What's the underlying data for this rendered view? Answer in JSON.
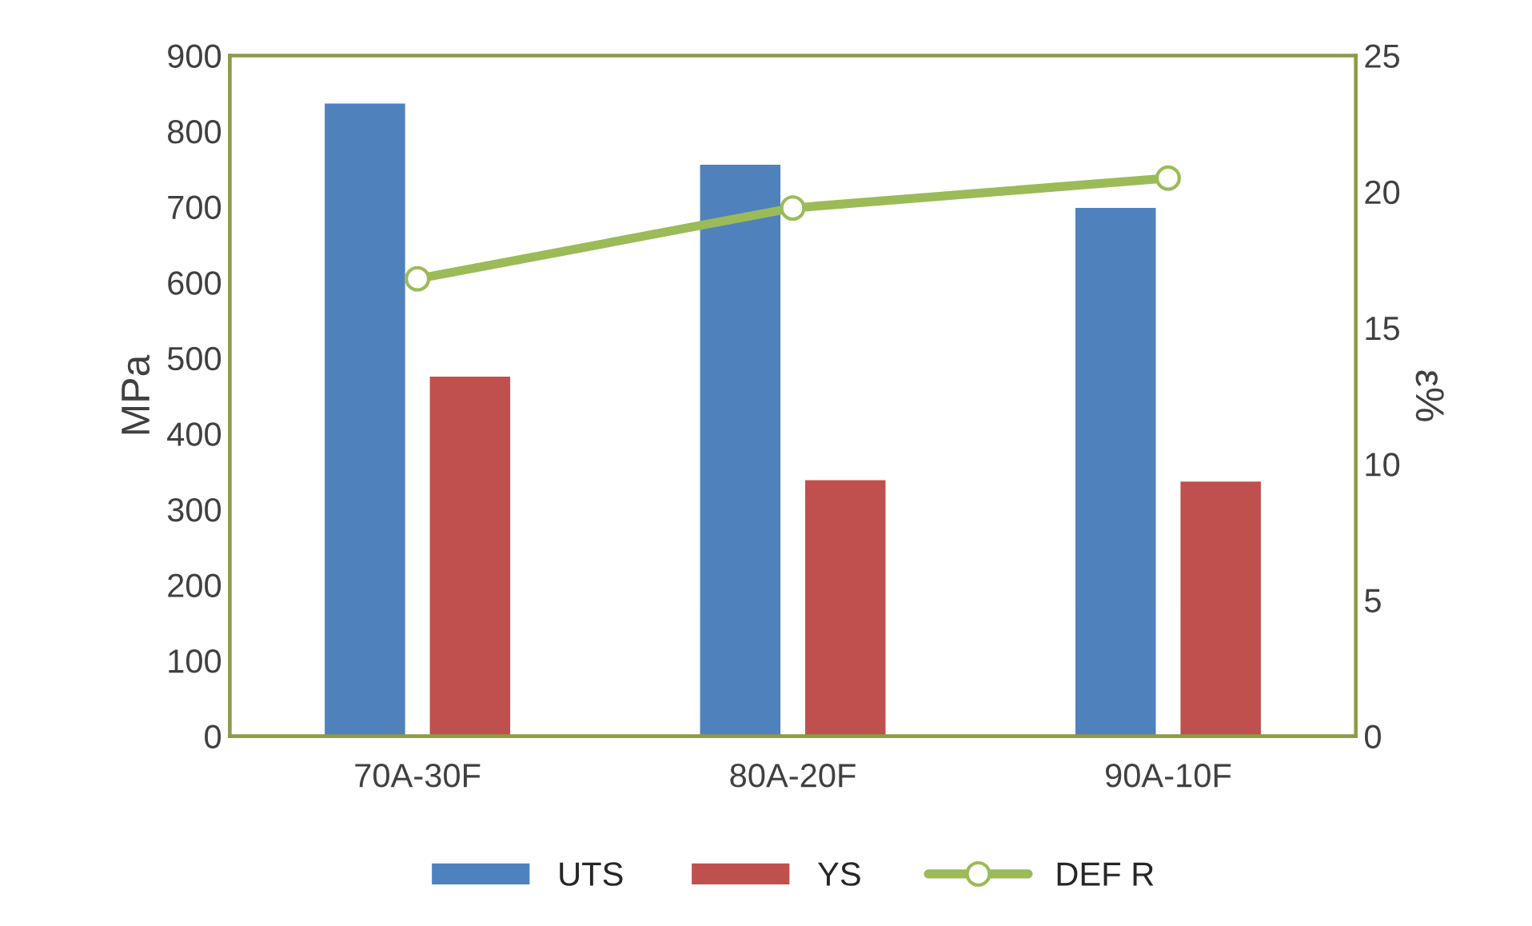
{
  "chart_data": {
    "type": "bar",
    "categories": [
      "70A-30F",
      "80A-20F",
      "90A-10F"
    ],
    "ylabel": "MPa",
    "y2label": "ε%",
    "series": [
      {
        "name": "UTS",
        "color": "#4f81bd",
        "values": [
          838,
          757,
          700
        ]
      },
      {
        "name": "YS",
        "color": "#c0504d",
        "values": [
          477,
          340,
          338
        ]
      },
      {
        "name": "DEF R",
        "color": "#9bbb59",
        "type": "line",
        "axis": "y2",
        "marker": "circle",
        "values": [
          16.8,
          19.4,
          20.5
        ]
      }
    ],
    "ylim": [
      0,
      900
    ],
    "yticks": [
      0,
      100,
      200,
      300,
      400,
      500,
      600,
      700,
      800,
      900
    ],
    "y2lim": [
      0,
      25
    ],
    "y2ticks": [
      0,
      5,
      10,
      15,
      20,
      25
    ],
    "grid": false,
    "legend": "bottom"
  }
}
